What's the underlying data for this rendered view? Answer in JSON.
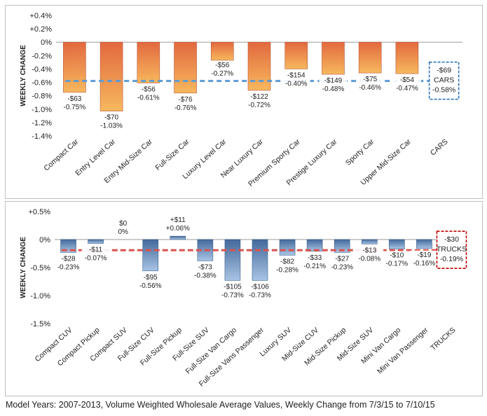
{
  "caption": "Model Years: 2007-2013, Volume Weighted Wholesale Average Values, Weekly Change from 7/3/15 to 7/10/15",
  "colors": {
    "cars_bar_top": "#e2693f",
    "cars_bar_bottom": "#f7b85e",
    "cars_avg_line": "#5b9bd5",
    "cars_box_border": "#2e75b6",
    "trucks_bar_top": "#43699b",
    "trucks_bar_bottom": "#a9c4e4",
    "trucks_avg_line": "#d9534f",
    "trucks_box_border": "#c00000"
  },
  "chart_data": [
    {
      "type": "bar",
      "ylabel": "WEEKLY CHANGE",
      "ylim": [
        -1.4,
        0.4
      ],
      "yticks": [
        0.4,
        0.2,
        0,
        -0.2,
        -0.4,
        -0.6,
        -0.8,
        -1.0,
        -1.2,
        -1.4
      ],
      "ytick_labels": [
        "+0.4%",
        "+0.2%",
        "0%",
        "-0.2%",
        "-0.4%",
        "-0.6%",
        "-0.8%",
        "-1.0%",
        "-1.2%",
        "-1.4%"
      ],
      "categories": [
        "Compact Car",
        "Entry Level Car",
        "Entry Mid-Size Car",
        "Full-Size Car",
        "Luxury Level Car",
        "Near Luxury Car",
        "Premium Sporty Car",
        "Prestige Luxury Car",
        "Sporty Car",
        "Upper Mid-Size Car",
        "CARS"
      ],
      "values": [
        -0.75,
        -1.03,
        -0.61,
        -0.76,
        -0.27,
        -0.72,
        -0.4,
        -0.48,
        -0.46,
        -0.47,
        -0.58
      ],
      "dollar_labels": [
        "-$63",
        "-$70",
        "-$56",
        "-$76",
        "-$56",
        "-$122",
        "-$154",
        "-$149",
        "-$75",
        "-$54",
        "-$69"
      ],
      "pct_labels": [
        "-0.75%",
        "-1.03%",
        "-0.61%",
        "-0.76%",
        "-0.27%",
        "-0.72%",
        "-0.40%",
        "-0.48%",
        "-0.46%",
        "-0.47%",
        "-0.58%"
      ],
      "segment_label": "CARS",
      "segment_avg": -0.58
    },
    {
      "type": "bar",
      "ylabel": "WEEKLY CHANGE",
      "ylim": [
        -1.5,
        0.5
      ],
      "yticks": [
        0.5,
        0,
        -0.5,
        -1.0,
        -1.5
      ],
      "ytick_labels": [
        "+0.5%",
        "0%",
        "-0.5%",
        "-1.0%",
        "-1.5%"
      ],
      "categories": [
        "Compact CUV",
        "Compact Pickup",
        "Compact SUV",
        "Full-Size CUV",
        "Full-Size Pickup",
        "Full-Size SUV",
        "Full-Size Van Cargo",
        "Full-Size Vans Passenger",
        "Luxury SUV",
        "Mid-Size CUV",
        "Mid-Size Pickup",
        "Mid-Size SUV",
        "Mini Van Cargo",
        "Mini Van Passenger",
        "TRUCKS"
      ],
      "values": [
        -0.23,
        -0.07,
        0,
        -0.56,
        0.06,
        -0.38,
        -0.73,
        -0.73,
        -0.28,
        -0.21,
        -0.23,
        -0.08,
        -0.17,
        -0.16,
        -0.19
      ],
      "dollar_labels": [
        "-$28",
        "-$11",
        "$0",
        "-$95",
        "+$11",
        "-$73",
        "-$105",
        "-$106",
        "-$82",
        "-$33",
        "-$27",
        "-$13",
        "-$10",
        "-$19",
        "-$30"
      ],
      "pct_labels": [
        "-0.23%",
        "-0.07%",
        "0%",
        "-0.56%",
        "+0.06%",
        "-0.38%",
        "-0.73%",
        "-0.73%",
        "-0.28%",
        "-0.21%",
        "-0.23%",
        "-0.08%",
        "-0.17%",
        "-0.16%",
        "-0.19%"
      ],
      "segment_label": "TRUCKS",
      "segment_avg": -0.19
    }
  ]
}
